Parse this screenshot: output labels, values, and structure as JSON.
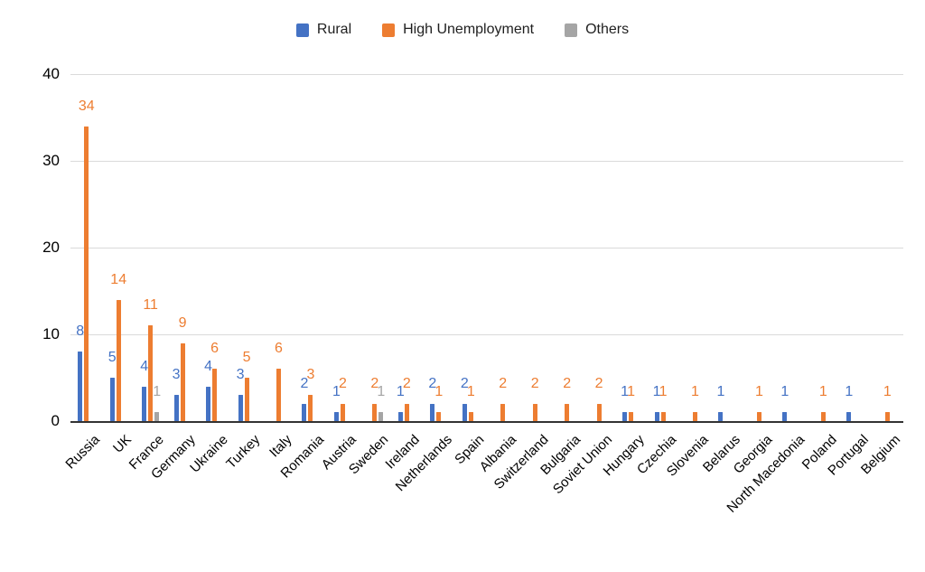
{
  "chart_data": {
    "type": "bar",
    "title": "",
    "xlabel": "",
    "ylabel": "",
    "ylim": [
      0,
      40
    ],
    "y_ticks": [
      0,
      10,
      20,
      30,
      40
    ],
    "grid": true,
    "legend_position": "top",
    "categories": [
      "Russia",
      "UK",
      "France",
      "Germany",
      "Ukraine",
      "Turkey",
      "Italy",
      "Romania",
      "Austria",
      "Sweden",
      "Ireland",
      "Netherlands",
      "Spain",
      "Albania",
      "Switzerland",
      "Bulgaria",
      "Soviet Union",
      "Hungary",
      "Czechia",
      "Slovenia",
      "Belarus",
      "Georgia",
      "North Macedonia",
      "Poland",
      "Portugal",
      "Belgium"
    ],
    "series": [
      {
        "name": "Rural",
        "color": "#4472C4",
        "values": [
          8,
          5,
          4,
          3,
          4,
          3,
          0,
          2,
          1,
          0,
          1,
          2,
          2,
          0,
          0,
          0,
          0,
          1,
          1,
          0,
          1,
          0,
          1,
          0,
          1,
          0
        ]
      },
      {
        "name": "High Unemployment",
        "color": "#ED7D31",
        "values": [
          34,
          14,
          11,
          9,
          6,
          5,
          6,
          3,
          2,
          2,
          2,
          1,
          1,
          2,
          2,
          2,
          2,
          1,
          1,
          1,
          0,
          1,
          0,
          1,
          0,
          1
        ]
      },
      {
        "name": "Others",
        "color": "#A5A5A5",
        "values": [
          0,
          0,
          1,
          0,
          0,
          0,
          0,
          0,
          0,
          1,
          0,
          0,
          0,
          0,
          0,
          0,
          0,
          0,
          0,
          0,
          0,
          0,
          0,
          0,
          0,
          0
        ]
      }
    ]
  }
}
